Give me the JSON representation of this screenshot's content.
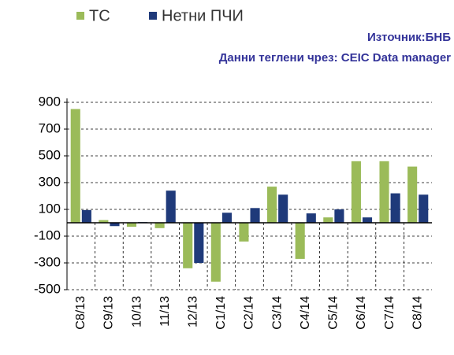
{
  "chart_data": {
    "type": "bar",
    "annotations": [
      "Източник:БНБ",
      "Данни теглени чрез: CEIC Data manager"
    ],
    "categories": [
      "C8/13",
      "C9/13",
      "10/13",
      "11/13",
      "12/13",
      "C1/14",
      "C2/14",
      "C3/14",
      "C4/14",
      "C5/14",
      "C6/14",
      "C7/14",
      "C8/14"
    ],
    "series": [
      {
        "name": "ТС",
        "color": "#9bbb59",
        "values": [
          850,
          20,
          -30,
          -40,
          -340,
          -440,
          -140,
          270,
          -270,
          40,
          460,
          460,
          420
        ]
      },
      {
        "name": "Нетни ПЧИ",
        "color": "#1f3a7a",
        "values": [
          95,
          -25,
          5,
          240,
          -300,
          75,
          110,
          210,
          70,
          100,
          40,
          220,
          210
        ]
      }
    ],
    "ylim": [
      -500,
      900
    ],
    "yticks": [
      900,
      700,
      500,
      300,
      100,
      -100,
      -300,
      -500
    ],
    "grid": true,
    "legend": "top"
  }
}
